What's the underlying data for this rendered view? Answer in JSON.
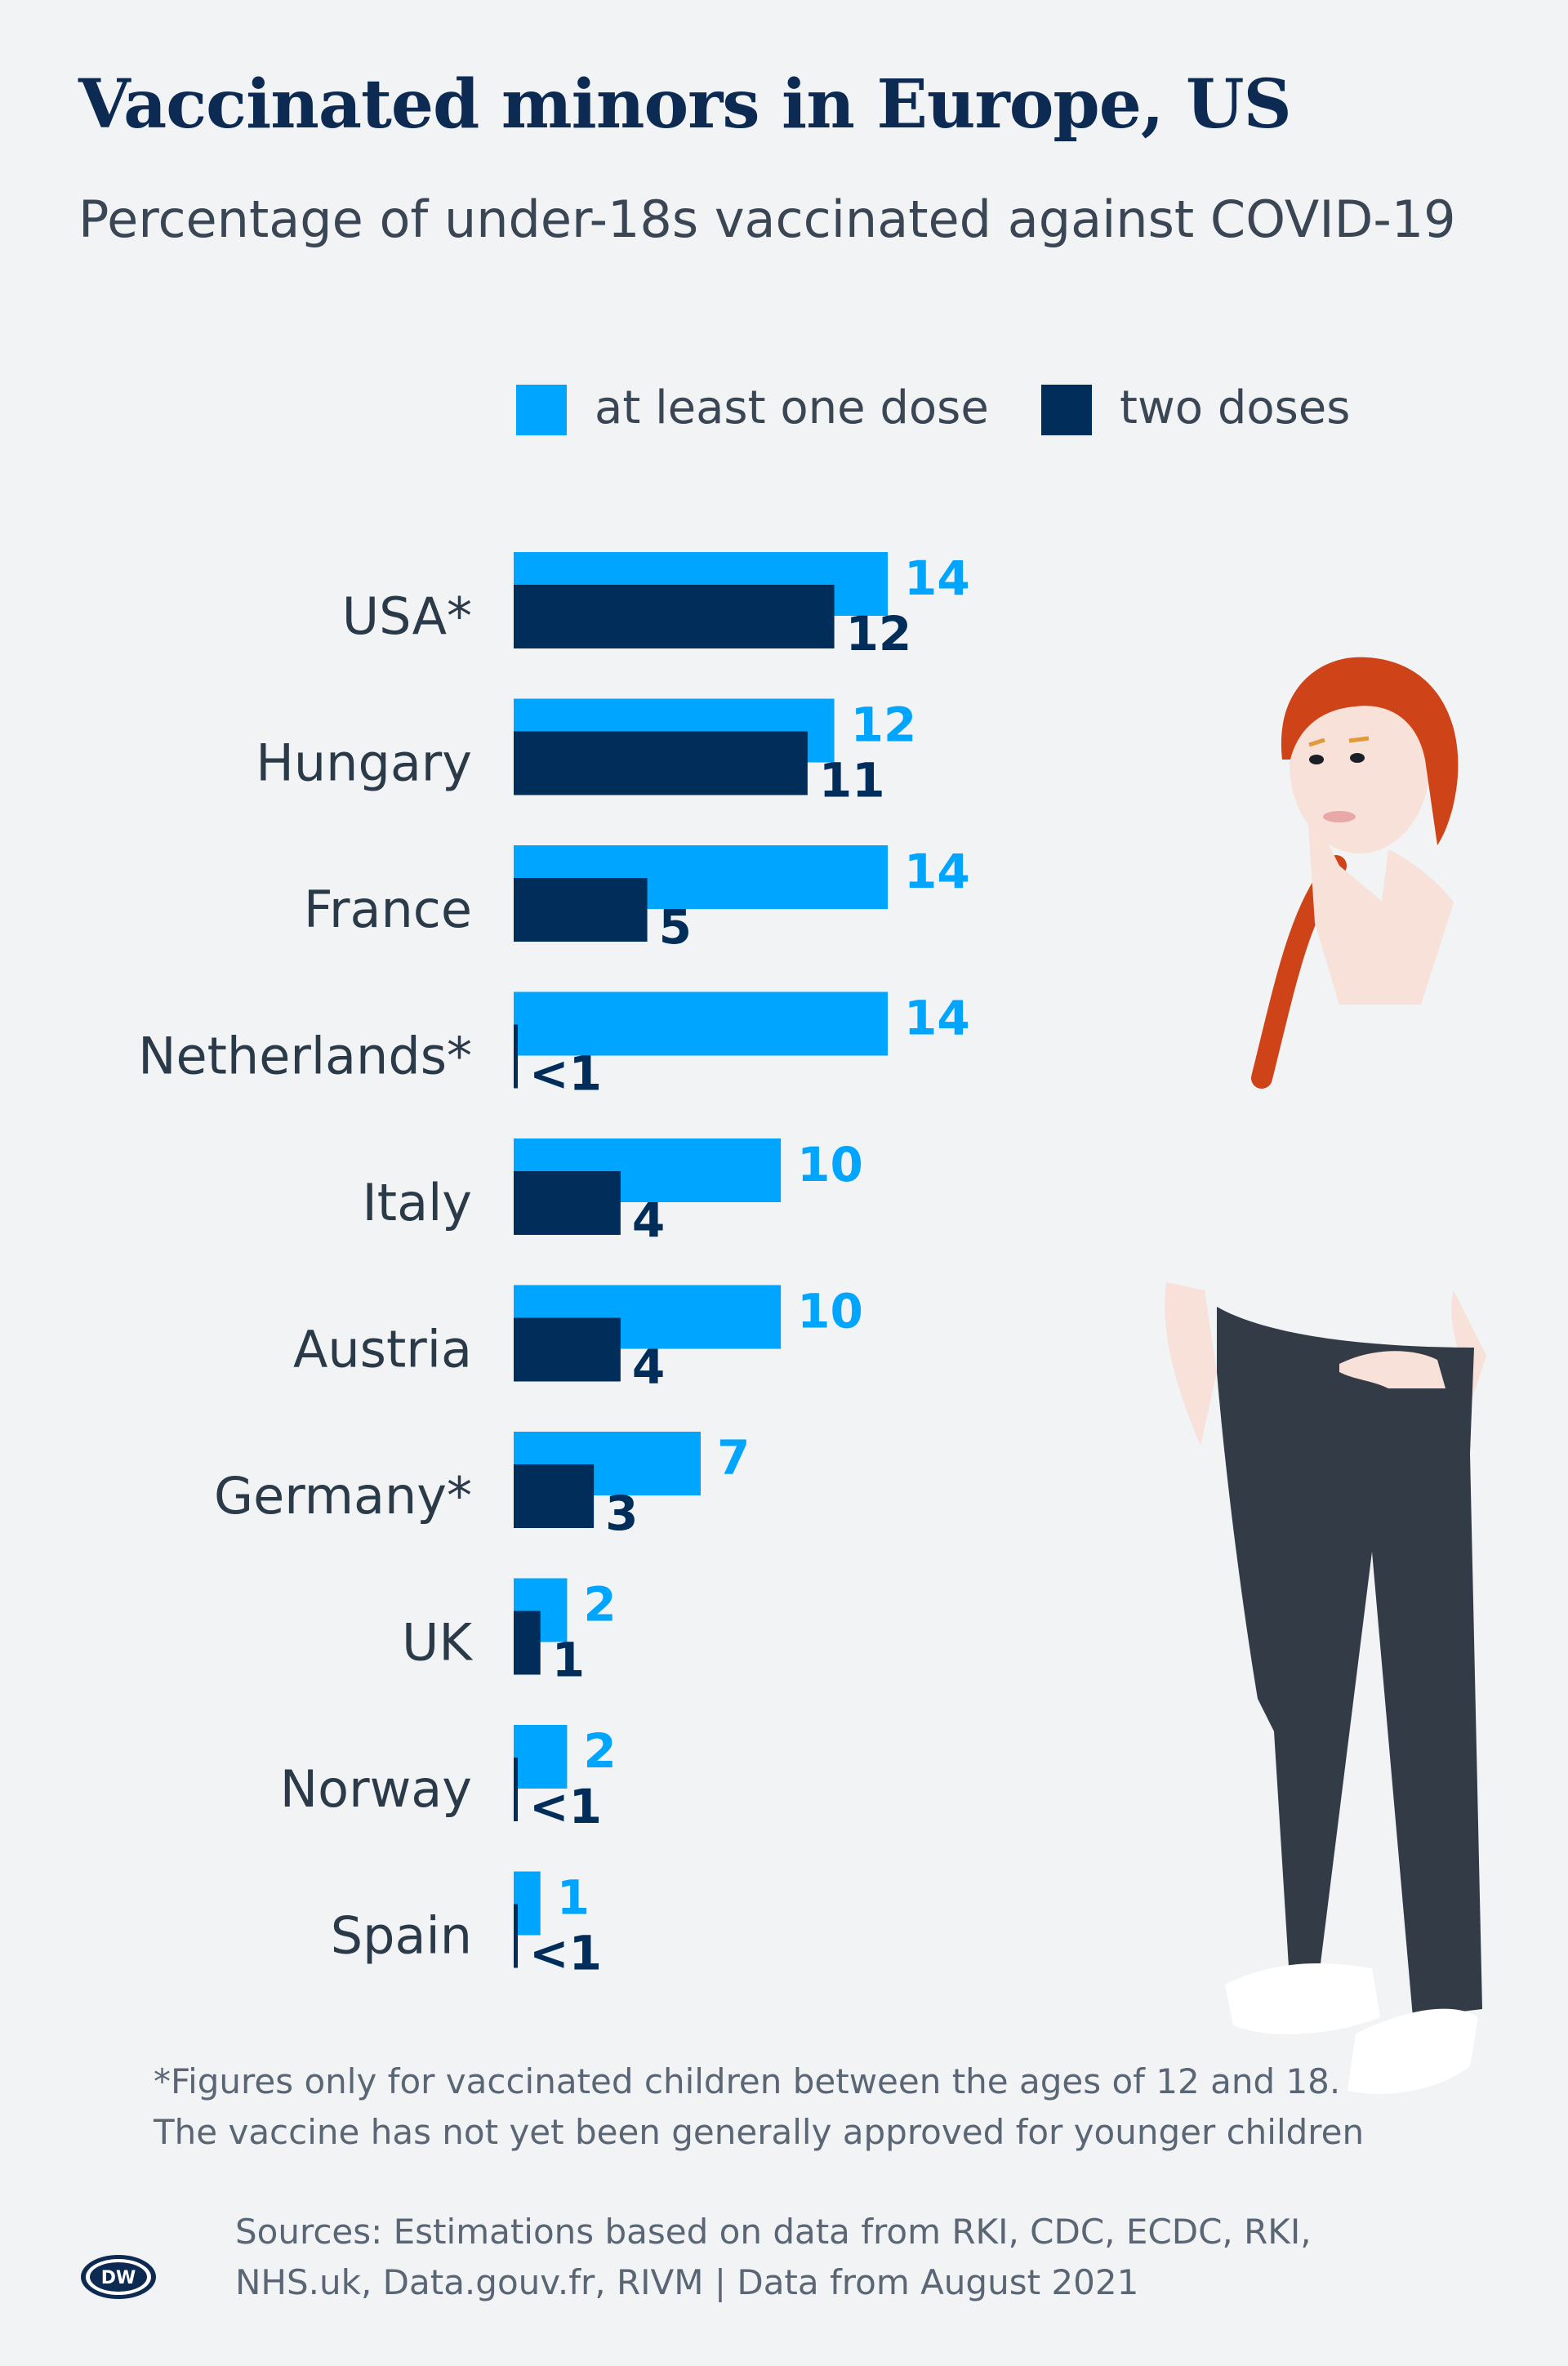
{
  "title": "Vaccinated minors in Europe, US",
  "subtitle": "Percentage of under-18s vaccinated against COVID-19",
  "colors": {
    "one_dose": "#00a5ff",
    "two_doses": "#002d5a",
    "label": "#2b3a48"
  },
  "chart_data": {
    "type": "bar",
    "orientation": "horizontal",
    "categories": [
      "USA*",
      "Hungary",
      "France",
      "Netherlands*",
      "Italy",
      "Austria",
      "Germany*",
      "UK",
      "Norway",
      "Spain"
    ],
    "series": [
      {
        "name": "at least one dose",
        "values": [
          14,
          12,
          14,
          14,
          10,
          10,
          7,
          2,
          2,
          1
        ],
        "labels": [
          "14",
          "12",
          "14",
          "14",
          "10",
          "10",
          "7",
          "2",
          "2",
          "1"
        ]
      },
      {
        "name": "two doses",
        "values": [
          12,
          11,
          5,
          0.1,
          4,
          4,
          3,
          1,
          0.1,
          0.1
        ],
        "labels": [
          "12",
          "11",
          "5",
          "<1",
          "4",
          "4",
          "3",
          "1",
          "<1",
          "<1"
        ]
      }
    ],
    "legend_position": "top",
    "grid": false,
    "xlim": [
      0,
      14
    ]
  },
  "footnote": {
    "line1": "*Figures only for vaccinated children between the ages of 12 and 18.",
    "line2": "The vaccine has not yet been generally approved for younger children"
  },
  "sources": {
    "line1": "Sources: Estimations based on data from RKI, CDC, ECDC, RKI,",
    "line2": "NHS.uk, Data.gouv.fr, RIVM | Data from August 2021"
  },
  "logo": {
    "text": "DW"
  }
}
